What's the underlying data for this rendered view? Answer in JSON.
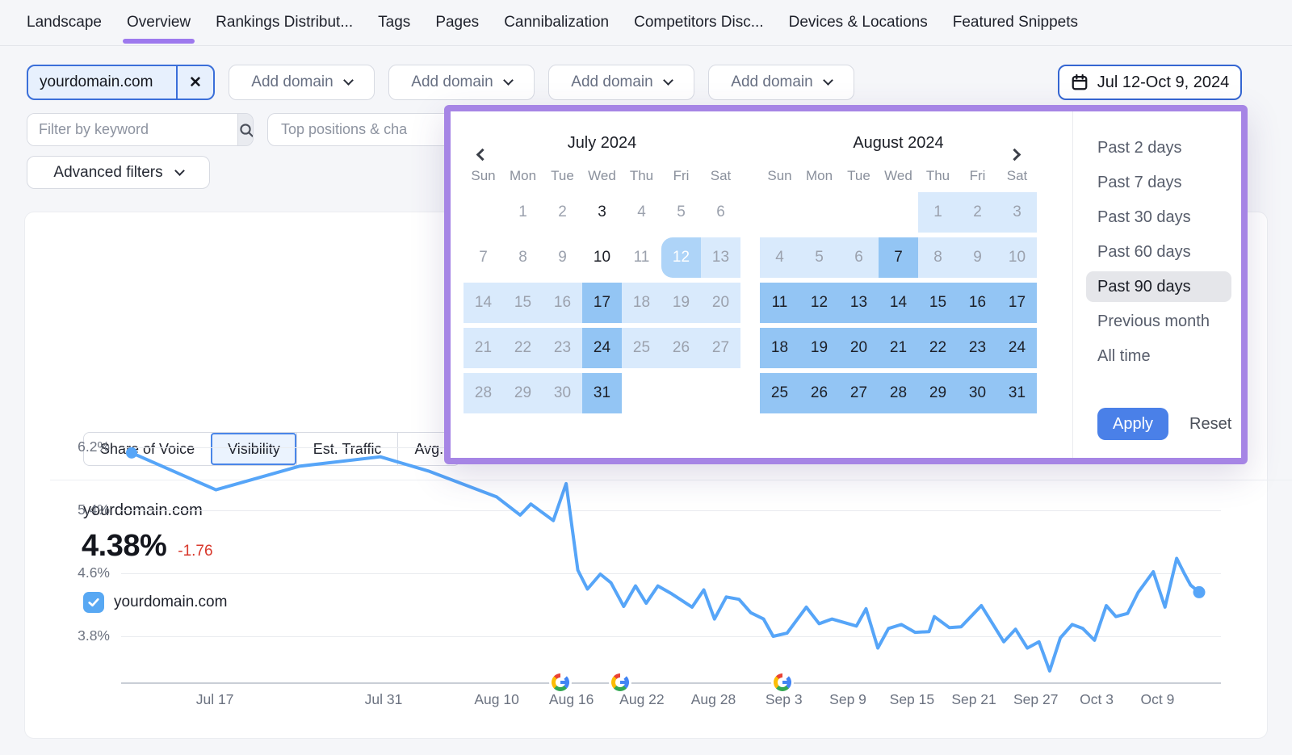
{
  "nav": {
    "tabs": [
      {
        "label": "Landscape",
        "active": false
      },
      {
        "label": "Overview",
        "active": true
      },
      {
        "label": "Rankings Distribut...",
        "active": false
      },
      {
        "label": "Tags",
        "active": false
      },
      {
        "label": "Pages",
        "active": false
      },
      {
        "label": "Cannibalization",
        "active": false
      },
      {
        "label": "Competitors Disc...",
        "active": false
      },
      {
        "label": "Devices & Locations",
        "active": false
      },
      {
        "label": "Featured Snippets",
        "active": false
      }
    ]
  },
  "domain_bar": {
    "selected_domain": "yourdomain.com",
    "remove_label": "✕",
    "add_domain_buttons": [
      "Add domain",
      "Add domain",
      "Add domain",
      "Add domain"
    ],
    "date_range": "Jul 12-Oct 9, 2024"
  },
  "filters": {
    "keyword_placeholder": "Filter by keyword",
    "positions_filter": "Top positions & cha",
    "advanced_filters_label": "Advanced filters"
  },
  "metric_tabs": [
    {
      "label": "Share of Voice",
      "active": false
    },
    {
      "label": "Visibility",
      "active": true
    },
    {
      "label": "Est. Traffic",
      "active": false
    },
    {
      "label": "Avg.",
      "active": false
    }
  ],
  "summary": {
    "domain": "yourdomain.com",
    "value": "4.38%",
    "change": "-1.76",
    "legend_label": "yourdomain.com",
    "legend_checked": true
  },
  "calendar": {
    "months": [
      {
        "title": "July 2024",
        "weekdays": [
          "Sun",
          "Mon",
          "Tue",
          "Wed",
          "Thu",
          "Fri",
          "Sat"
        ],
        "weeks": [
          [
            null,
            [
              "1",
              "none",
              "gray"
            ],
            [
              "2",
              "none",
              "gray"
            ],
            [
              "3",
              "none",
              "dark"
            ],
            [
              "4",
              "none",
              "gray"
            ],
            [
              "5",
              "none",
              "gray"
            ],
            [
              "6",
              "none",
              "gray"
            ]
          ],
          [
            [
              "7",
              "none",
              "gray"
            ],
            [
              "8",
              "none",
              "gray"
            ],
            [
              "9",
              "none",
              "gray"
            ],
            [
              "10",
              "none",
              "dark"
            ],
            [
              "11",
              "none",
              "gray"
            ],
            [
              "12",
              "start",
              "white"
            ],
            [
              "13",
              "light",
              "gray"
            ]
          ],
          [
            [
              "14",
              "light",
              "gray"
            ],
            [
              "15",
              "light",
              "gray"
            ],
            [
              "16",
              "light",
              "gray"
            ],
            [
              "17",
              "mid",
              "dark"
            ],
            [
              "18",
              "light",
              "gray"
            ],
            [
              "19",
              "light",
              "gray"
            ],
            [
              "20",
              "light",
              "gray"
            ]
          ],
          [
            [
              "21",
              "light",
              "gray"
            ],
            [
              "22",
              "light",
              "gray"
            ],
            [
              "23",
              "light",
              "gray"
            ],
            [
              "24",
              "mid",
              "dark"
            ],
            [
              "25",
              "light",
              "gray"
            ],
            [
              "26",
              "light",
              "gray"
            ],
            [
              "27",
              "light",
              "gray"
            ]
          ],
          [
            [
              "28",
              "light",
              "gray"
            ],
            [
              "29",
              "light",
              "gray"
            ],
            [
              "30",
              "light",
              "gray"
            ],
            [
              "31",
              "mid",
              "dark"
            ],
            null,
            null,
            null
          ]
        ]
      },
      {
        "title": "August 2024",
        "weekdays": [
          "Sun",
          "Mon",
          "Tue",
          "Wed",
          "Thu",
          "Fri",
          "Sat"
        ],
        "weeks": [
          [
            null,
            null,
            null,
            null,
            [
              "1",
              "light",
              "gray"
            ],
            [
              "2",
              "light",
              "gray"
            ],
            [
              "3",
              "light",
              "gray"
            ]
          ],
          [
            [
              "4",
              "light",
              "gray"
            ],
            [
              "5",
              "light",
              "gray"
            ],
            [
              "6",
              "light",
              "gray"
            ],
            [
              "7",
              "mid",
              "dark"
            ],
            [
              "8",
              "light",
              "gray"
            ],
            [
              "9",
              "light",
              "gray"
            ],
            [
              "10",
              "light",
              "gray"
            ]
          ],
          [
            [
              "11",
              "mid",
              "dark"
            ],
            [
              "12",
              "mid",
              "dark"
            ],
            [
              "13",
              "mid",
              "dark"
            ],
            [
              "14",
              "mid",
              "dark"
            ],
            [
              "15",
              "mid",
              "dark"
            ],
            [
              "16",
              "mid",
              "dark"
            ],
            [
              "17",
              "mid",
              "dark"
            ]
          ],
          [
            [
              "18",
              "mid",
              "dark"
            ],
            [
              "19",
              "mid",
              "dark"
            ],
            [
              "20",
              "mid",
              "dark"
            ],
            [
              "21",
              "mid",
              "dark"
            ],
            [
              "22",
              "mid",
              "dark"
            ],
            [
              "23",
              "mid",
              "dark"
            ],
            [
              "24",
              "mid",
              "dark"
            ]
          ],
          [
            [
              "25",
              "mid",
              "dark"
            ],
            [
              "26",
              "mid",
              "dark"
            ],
            [
              "27",
              "mid",
              "dark"
            ],
            [
              "28",
              "mid",
              "dark"
            ],
            [
              "29",
              "mid",
              "dark"
            ],
            [
              "30",
              "mid",
              "dark"
            ],
            [
              "31",
              "mid",
              "dark"
            ]
          ]
        ]
      }
    ],
    "presets": [
      "Past 2 days",
      "Past 7 days",
      "Past 30 days",
      "Past 60 days",
      "Past 90 days",
      "Previous month",
      "All time"
    ],
    "selected_preset": "Past 90 days",
    "apply_label": "Apply",
    "reset_label": "Reset"
  },
  "chart_data": {
    "type": "line",
    "series_name": "yourdomain.com",
    "line_color": "#56a5f8",
    "unit": "%",
    "y_ticks": [
      {
        "label": "6.2%",
        "value": 6.2
      },
      {
        "label": "5.4%",
        "value": 5.4
      },
      {
        "label": "4.6%",
        "value": 4.6
      },
      {
        "label": "3.8%",
        "value": 3.8
      }
    ],
    "ylim_visible": [
      3.2,
      6.5
    ],
    "grid": true,
    "x_ticks": [
      {
        "label": "Jul 17",
        "f": 0.078
      },
      {
        "label": "Jul 31",
        "f": 0.236
      },
      {
        "label": "Aug 10",
        "f": 0.342
      },
      {
        "label": "Aug 16",
        "f": 0.412
      },
      {
        "label": "Aug 22",
        "f": 0.478
      },
      {
        "label": "Aug 28",
        "f": 0.545
      },
      {
        "label": "Sep 3",
        "f": 0.611
      },
      {
        "label": "Sep 9",
        "f": 0.671
      },
      {
        "label": "Sep 15",
        "f": 0.731
      },
      {
        "label": "Sep 21",
        "f": 0.789
      },
      {
        "label": "Sep 27",
        "f": 0.847
      },
      {
        "label": "Oct 3",
        "f": 0.904
      },
      {
        "label": "Oct 9",
        "f": 0.961
      }
    ],
    "google_update_markers": [
      {
        "date": "Aug 16",
        "f": 0.402
      },
      {
        "date": "Aug 22",
        "f": 0.458
      },
      {
        "date": "Sep 3",
        "f": 0.61
      }
    ],
    "points": [
      [
        0.0,
        6.13
      ],
      [
        0.079,
        5.66
      ],
      [
        0.157,
        5.96
      ],
      [
        0.233,
        6.08
      ],
      [
        0.278,
        5.9
      ],
      [
        0.342,
        5.57
      ],
      [
        0.364,
        5.34
      ],
      [
        0.374,
        5.48
      ],
      [
        0.395,
        5.27
      ],
      [
        0.407,
        5.74
      ],
      [
        0.418,
        4.64
      ],
      [
        0.427,
        4.4
      ],
      [
        0.439,
        4.59
      ],
      [
        0.449,
        4.48
      ],
      [
        0.461,
        4.18
      ],
      [
        0.472,
        4.44
      ],
      [
        0.482,
        4.22
      ],
      [
        0.493,
        4.44
      ],
      [
        0.506,
        4.34
      ],
      [
        0.525,
        4.17
      ],
      [
        0.536,
        4.39
      ],
      [
        0.546,
        4.02
      ],
      [
        0.557,
        4.3
      ],
      [
        0.569,
        4.27
      ],
      [
        0.58,
        4.1
      ],
      [
        0.592,
        4.02
      ],
      [
        0.601,
        3.8
      ],
      [
        0.614,
        3.84
      ],
      [
        0.632,
        4.17
      ],
      [
        0.644,
        3.96
      ],
      [
        0.656,
        4.02
      ],
      [
        0.679,
        3.93
      ],
      [
        0.688,
        4.15
      ],
      [
        0.699,
        3.65
      ],
      [
        0.709,
        3.9
      ],
      [
        0.721,
        3.95
      ],
      [
        0.734,
        3.85
      ],
      [
        0.747,
        3.86
      ],
      [
        0.752,
        4.05
      ],
      [
        0.766,
        3.91
      ],
      [
        0.777,
        3.92
      ],
      [
        0.796,
        4.19
      ],
      [
        0.817,
        3.73
      ],
      [
        0.828,
        3.89
      ],
      [
        0.839,
        3.65
      ],
      [
        0.85,
        3.73
      ],
      [
        0.86,
        3.36
      ],
      [
        0.87,
        3.78
      ],
      [
        0.881,
        3.95
      ],
      [
        0.891,
        3.9
      ],
      [
        0.902,
        3.75
      ],
      [
        0.913,
        4.19
      ],
      [
        0.922,
        4.05
      ],
      [
        0.933,
        4.09
      ],
      [
        0.943,
        4.36
      ],
      [
        0.957,
        4.62
      ],
      [
        0.968,
        4.17
      ],
      [
        0.979,
        4.79
      ],
      [
        0.986,
        4.6
      ],
      [
        0.992,
        4.45
      ],
      [
        1.0,
        4.36
      ]
    ]
  }
}
